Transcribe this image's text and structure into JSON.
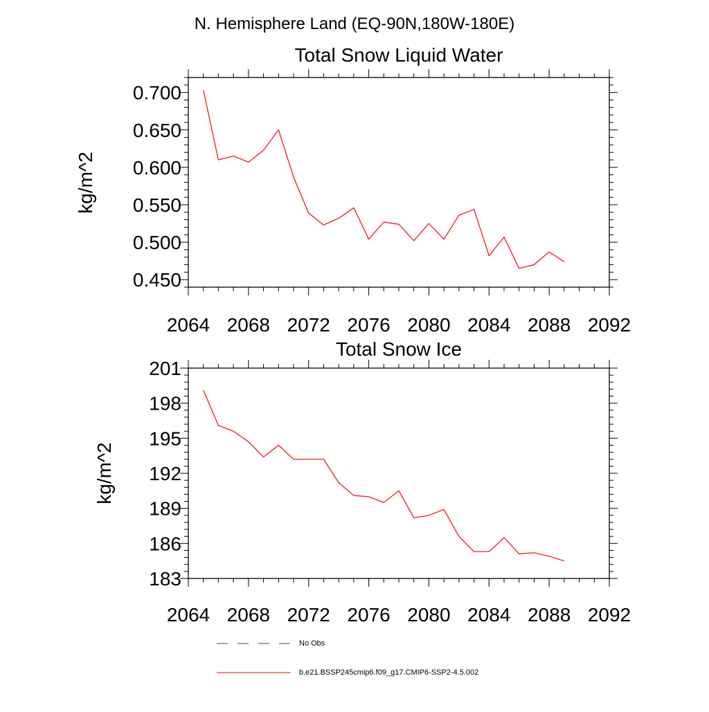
{
  "header": {
    "region_title": "N. Hemisphere Land (EQ-90N,180W-180E)"
  },
  "chart_data": [
    {
      "type": "line",
      "title": "Total Snow Liquid Water",
      "xlabel": "",
      "ylabel": "kg/m^2",
      "xlim": [
        2064,
        2092
      ],
      "ylim": [
        0.44,
        0.72
      ],
      "x_ticks": [
        "2064",
        "2068",
        "2072",
        "2076",
        "2080",
        "2084",
        "2088",
        "2092"
      ],
      "y_ticks": [
        "0.450",
        "0.500",
        "0.550",
        "0.600",
        "0.650",
        "0.700"
      ],
      "grid": false,
      "series": [
        {
          "name": "b.e21.BSSP245cmip6.f09_g17.CMIP6-SSP2-4.5.002",
          "color": "#ff0000",
          "x": [
            2065,
            2066,
            2067,
            2068,
            2069,
            2070,
            2071,
            2072,
            2073,
            2074,
            2075,
            2076,
            2077,
            2078,
            2079,
            2080,
            2081,
            2082,
            2083,
            2084,
            2085,
            2086,
            2087,
            2088,
            2089
          ],
          "y": [
            0.703,
            0.61,
            0.615,
            0.607,
            0.623,
            0.65,
            0.587,
            0.539,
            0.523,
            0.532,
            0.546,
            0.504,
            0.527,
            0.524,
            0.502,
            0.525,
            0.504,
            0.536,
            0.544,
            0.482,
            0.507,
            0.465,
            0.47,
            0.487,
            0.474
          ]
        }
      ]
    },
    {
      "type": "line",
      "title": "Total Snow Ice",
      "xlabel": "",
      "ylabel": "kg/m^2",
      "xlim": [
        2064,
        2092
      ],
      "ylim": [
        183,
        201
      ],
      "x_ticks": [
        "2064",
        "2068",
        "2072",
        "2076",
        "2080",
        "2084",
        "2088",
        "2092"
      ],
      "y_ticks": [
        "183",
        "186",
        "189",
        "192",
        "195",
        "198",
        "201"
      ],
      "grid": false,
      "series": [
        {
          "name": "b.e21.BSSP245cmip6.f09_g17.CMIP6-SSP2-4.5.002",
          "color": "#ff0000",
          "x": [
            2065,
            2066,
            2067,
            2068,
            2069,
            2070,
            2071,
            2072,
            2073,
            2074,
            2075,
            2076,
            2077,
            2078,
            2079,
            2080,
            2081,
            2082,
            2083,
            2084,
            2085,
            2086,
            2087,
            2088,
            2089
          ],
          "y": [
            199.1,
            196.1,
            195.6,
            194.7,
            193.4,
            194.4,
            193.2,
            193.2,
            193.2,
            191.2,
            190.1,
            190.0,
            189.5,
            190.5,
            188.2,
            188.4,
            188.9,
            186.6,
            185.3,
            185.3,
            186.5,
            185.1,
            185.2,
            184.9,
            184.5
          ]
        }
      ]
    }
  ],
  "legend": {
    "items": [
      {
        "label": "No Obs",
        "color": "#3a3a8a",
        "style": "dashed"
      },
      {
        "label": "b.e21.BSSP245cmip6.f09_g17.CMIP6-SSP2-4.5.002",
        "color": "#ff0000",
        "style": "solid"
      }
    ]
  }
}
